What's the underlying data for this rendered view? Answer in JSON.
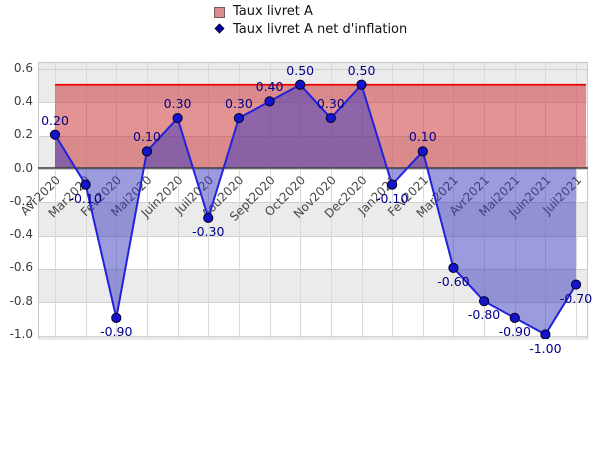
{
  "legend": {
    "items": [
      {
        "label": "Taux livret A",
        "marker": "square-swatch"
      },
      {
        "label": "Taux livret A net d'inflation",
        "marker": "diamond"
      }
    ]
  },
  "chart_data": {
    "type": "line",
    "title": "",
    "xlabel": "",
    "ylabel": "",
    "categories": [
      "Avr2020",
      "Mar2020",
      "Fev2020",
      "Mai2020",
      "Juin2020",
      "Juil2020",
      "Aou2020",
      "Sept2020",
      "Oct2020",
      "Nov2020",
      "Dec2020",
      "Jan2021",
      "Fev2021",
      "Mar2021",
      "Avr2021",
      "Mai2021",
      "Juin2021",
      "Juil2021"
    ],
    "series": [
      {
        "name": "Taux livret A",
        "type": "constant-band",
        "value": 0.5,
        "fill_from": 0.0,
        "note": "horizontal red line at 0.5 with pink fill down to 0"
      },
      {
        "name": "Taux livret A net d'inflation",
        "type": "line-area-to-zero",
        "values": [
          0.2,
          -0.1,
          -0.9,
          0.1,
          0.3,
          -0.3,
          0.3,
          0.4,
          0.5,
          0.3,
          0.5,
          -0.1,
          0.1,
          -0.6,
          -0.8,
          -0.9,
          -1.0,
          -0.7
        ],
        "value_labels": [
          "0.20",
          "-0.10",
          "-0.90",
          "0.10",
          "0.30",
          "-0.30",
          "0.30",
          "0.40",
          "0.50",
          "0.30",
          "0.50",
          "-0.10",
          "0.10",
          "-0.60",
          "-0.80",
          "-0.90",
          "-1.00",
          "-0.70"
        ]
      }
    ],
    "y_ticks": [
      0.6,
      0.4,
      0.2,
      0.0,
      -0.2,
      -0.4,
      -0.6,
      -0.8,
      -1.0
    ],
    "y_tick_labels": [
      "0.6",
      "0.4",
      "0.2",
      "0.0",
      "-0.2",
      "-0.4",
      "-0.6",
      "-0.8",
      "-1.0"
    ],
    "ylim": [
      -1.03,
      0.64
    ],
    "grid": true,
    "legend_position": "top",
    "background_bands": "alternating gray/white every 0.2"
  },
  "colors": {
    "band_fill": "rgba(204,58,58,0.55)",
    "band_top_line": "#ee0000",
    "area_fill": "rgba(55,55,190,0.5)",
    "line": "#2222dd",
    "marker_fill": "#1414cc",
    "marker_stroke": "#00001e",
    "value_label": "#00008b",
    "axis_text": "#3d3d3d",
    "gridline": "#d9d9d9",
    "grid_band_gray": "#ebebeb",
    "zero_line": "#3c3c3c",
    "legend_swatch_fill": "#dd8a8a",
    "legend_swatch_border": "#7a5b5b",
    "legend_diamond_fill": "#0000b0",
    "legend_diamond_border": "#000030"
  }
}
